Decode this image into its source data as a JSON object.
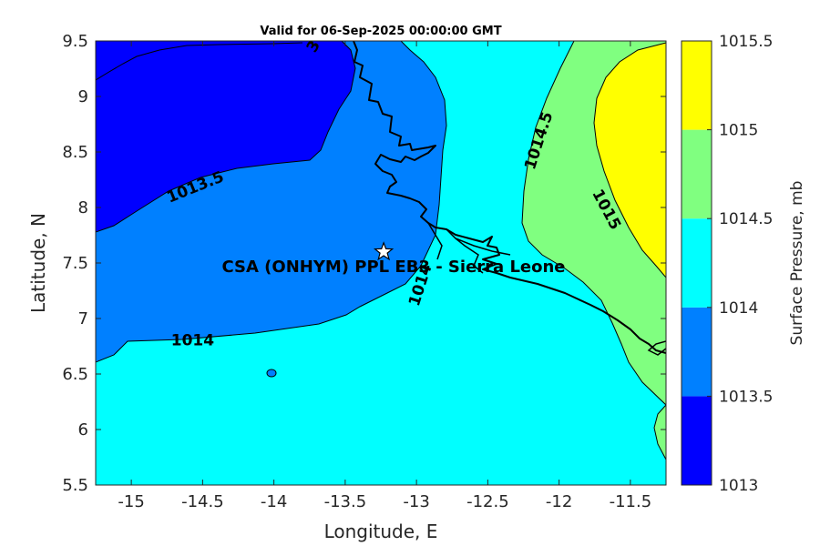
{
  "title": "Valid for 06-Sep-2025 00:00:00 GMT",
  "xlabel": "Longitude, E",
  "ylabel": "Latitude, N",
  "colorbar_label": "Surface Pressure, mb",
  "site_label": "CSA (ONHYM) PPL EB3  - Sierra Leone",
  "site_location": {
    "lon": -13.23,
    "lat": 7.6
  },
  "chart_data": {
    "type": "contour-map",
    "xlim": [
      -15.25,
      -11.25
    ],
    "ylim": [
      5.5,
      9.5
    ],
    "x_ticks": [
      -15,
      -14.5,
      -14,
      -13.5,
      -13,
      -12.5,
      -12,
      -11.5
    ],
    "x_tick_labels": [
      "-15",
      "-14.5",
      "-14",
      "-13.5",
      "-13",
      "-12.5",
      "-12",
      "-11.5"
    ],
    "y_ticks": [
      5.5,
      6,
      6.5,
      7,
      7.5,
      8,
      8.5,
      9,
      9.5
    ],
    "y_tick_labels": [
      "5.5",
      "6",
      "6.5",
      "7",
      "7.5",
      "8",
      "8.5",
      "9",
      "9.5"
    ],
    "levels": [
      1013,
      1013.5,
      1014,
      1014.5,
      1015,
      1015.5
    ],
    "level_tick_labels": [
      "1013",
      "1013.5",
      "1014",
      "1014.5",
      "1015",
      "1015.5"
    ],
    "level_colors": [
      "#0000ff",
      "#0080ff",
      "#00ffff",
      "#80ff80",
      "#ffff00",
      "#ff8000"
    ],
    "contour_labels": [
      {
        "text": "1013.5",
        "lon": -14.55,
        "lat": 8.18,
        "angle": -22
      },
      {
        "text": "1014",
        "lon": -14.57,
        "lat": 6.8,
        "angle": 0
      },
      {
        "text": "1014",
        "lon": -12.97,
        "lat": 7.3,
        "angle": -72
      },
      {
        "text": "1014.5",
        "lon": -12.14,
        "lat": 8.6,
        "angle": -72
      },
      {
        "text": "1015",
        "lon": -11.67,
        "lat": 7.98,
        "angle": 62
      },
      {
        "text": "3",
        "lon": -13.72,
        "lat": 9.45,
        "angle": -60
      }
    ]
  }
}
